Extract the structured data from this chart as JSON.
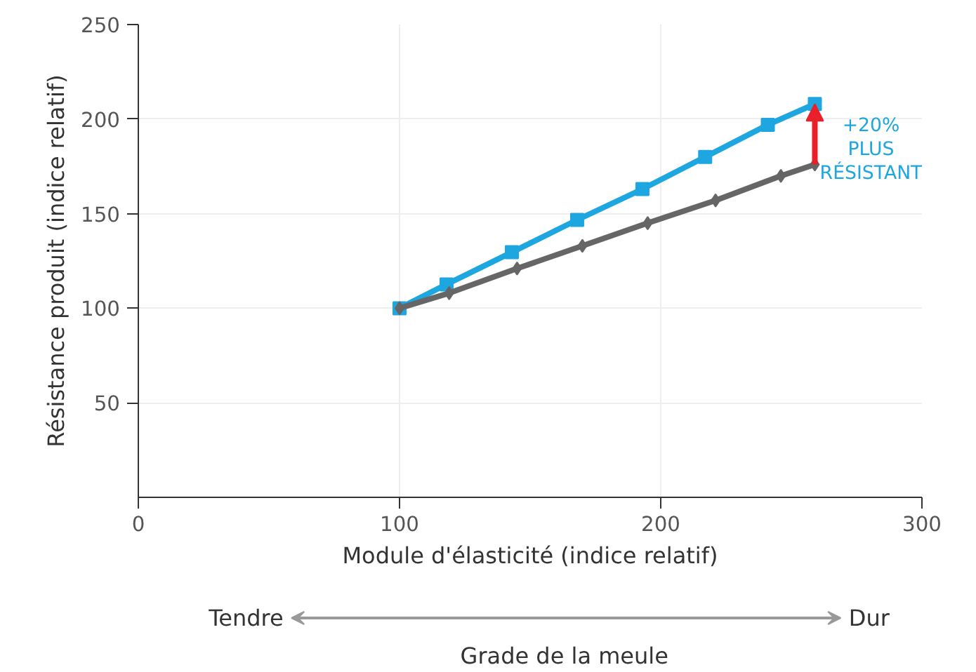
{
  "chart_data": {
    "type": "line",
    "xlabel": "Module d'élasticité (indice relatif)",
    "ylabel": "Résistance produit (indice relatif)",
    "xlim": [
      0,
      300
    ],
    "xticks": [
      0,
      100,
      200,
      300
    ],
    "ylim": [
      0,
      250
    ],
    "yticks": [
      50,
      100,
      150,
      200,
      250
    ],
    "grid": true,
    "series": [
      {
        "color": "#1ea6e0",
        "marker": "square",
        "x": [
          100,
          118,
          143,
          168,
          193,
          217,
          241,
          259
        ],
        "values": [
          100,
          112.6,
          129.6,
          146.7,
          163,
          180,
          197,
          208
        ]
      },
      {
        "color": "#666666",
        "marker": "diamond",
        "x": [
          100,
          119,
          145,
          170,
          195,
          221,
          246,
          259
        ],
        "values": [
          100,
          108,
          121,
          133,
          145,
          157,
          170,
          176
        ]
      }
    ],
    "annotations": [
      {
        "text": "+20%\nPLUS\nRÉSISTANT",
        "x": 259,
        "y": 208
      },
      "Tendre",
      "Dur",
      "Grade de la meule"
    ]
  }
}
